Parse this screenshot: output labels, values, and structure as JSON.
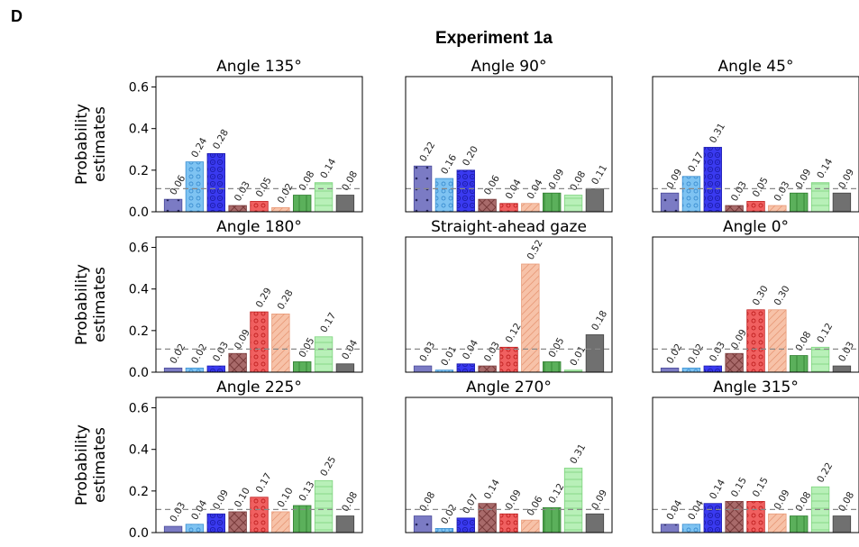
{
  "panel_letter": "D",
  "figure_title": "Experiment 1a",
  "chart_data": [
    {
      "type": "bar",
      "title": "Angle 135°",
      "ylabel_lines": [
        "Probability",
        "estimates"
      ],
      "ylim": [
        0,
        0.65
      ],
      "yticks": [
        "0.0",
        "0.2",
        "0.4",
        "0.6"
      ],
      "reference_line": 0.111,
      "values": [
        0.06,
        0.24,
        0.28,
        0.03,
        0.05,
        0.02,
        0.08,
        0.14,
        0.08
      ],
      "labels": [
        "0.06",
        "0.24",
        "0.28",
        "0.03",
        "0.05",
        "0.02",
        "0.08",
        "0.14",
        "0.08"
      ]
    },
    {
      "type": "bar",
      "title": "Angle 90°",
      "ylim": [
        0,
        0.65
      ],
      "reference_line": 0.111,
      "values": [
        0.22,
        0.16,
        0.2,
        0.06,
        0.04,
        0.04,
        0.09,
        0.08,
        0.11
      ],
      "labels": [
        "0.22",
        "0.16",
        "0.20",
        "0.06",
        "0.04",
        "0.04",
        "0.09",
        "0.08",
        "0.11"
      ]
    },
    {
      "type": "bar",
      "title": "Angle 45°",
      "ylim": [
        0,
        0.65
      ],
      "reference_line": 0.111,
      "values": [
        0.09,
        0.17,
        0.31,
        0.03,
        0.05,
        0.03,
        0.09,
        0.14,
        0.09
      ],
      "labels": [
        "0.09",
        "0.17",
        "0.31",
        "0.03",
        "0.05",
        "0.03",
        "0.09",
        "0.14",
        "0.09"
      ]
    },
    {
      "type": "bar",
      "title": "Angle 180°",
      "ylabel_lines": [
        "Probability",
        "estimates"
      ],
      "ylim": [
        0,
        0.65
      ],
      "yticks": [
        "0.0",
        "0.2",
        "0.4",
        "0.6"
      ],
      "reference_line": 0.111,
      "values": [
        0.02,
        0.02,
        0.03,
        0.09,
        0.29,
        0.28,
        0.05,
        0.17,
        0.04
      ],
      "labels": [
        "0.02",
        "0.02",
        "0.03",
        "0.09",
        "0.29",
        "0.28",
        "0.05",
        "0.17",
        "0.04"
      ]
    },
    {
      "type": "bar",
      "title": "Straight-ahead gaze",
      "ylim": [
        0,
        0.65
      ],
      "reference_line": 0.111,
      "values": [
        0.03,
        0.01,
        0.04,
        0.03,
        0.12,
        0.52,
        0.05,
        0.01,
        0.18
      ],
      "labels": [
        "0.03",
        "0.01",
        "0.04",
        "0.03",
        "0.12",
        "0.52",
        "0.05",
        "0.01",
        "0.18"
      ]
    },
    {
      "type": "bar",
      "title": "Angle 0°",
      "ylim": [
        0,
        0.65
      ],
      "reference_line": 0.111,
      "values": [
        0.02,
        0.02,
        0.03,
        0.09,
        0.3,
        0.3,
        0.08,
        0.12,
        0.03
      ],
      "labels": [
        "0.02",
        "0.02",
        "0.03",
        "0.09",
        "0.30",
        "0.30",
        "0.08",
        "0.12",
        "0.03"
      ]
    },
    {
      "type": "bar",
      "title": "Angle 225°",
      "ylabel_lines": [
        "Probability",
        "estimates"
      ],
      "ylim": [
        0,
        0.65
      ],
      "yticks": [
        "0.0",
        "0.2",
        "0.4",
        "0.6"
      ],
      "reference_line": 0.111,
      "values": [
        0.03,
        0.04,
        0.09,
        0.1,
        0.17,
        0.1,
        0.13,
        0.25,
        0.08
      ],
      "labels": [
        "0.03",
        "0.04",
        "0.09",
        "0.10",
        "0.17",
        "0.10",
        "0.13",
        "0.25",
        "0.08"
      ]
    },
    {
      "type": "bar",
      "title": "Angle 270°",
      "ylim": [
        0,
        0.65
      ],
      "reference_line": 0.111,
      "values": [
        0.08,
        0.02,
        0.07,
        0.14,
        0.09,
        0.06,
        0.12,
        0.31,
        0.09
      ],
      "labels": [
        "0.08",
        "0.02",
        "0.07",
        "0.14",
        "0.09",
        "0.06",
        "0.12",
        "0.31",
        "0.09"
      ]
    },
    {
      "type": "bar",
      "title": "Angle 315°",
      "ylim": [
        0,
        0.65
      ],
      "reference_line": 0.111,
      "values": [
        0.04,
        0.04,
        0.14,
        0.15,
        0.15,
        0.09,
        0.08,
        0.22,
        0.08
      ],
      "labels": [
        "0.04",
        "0.04",
        "0.14",
        "0.15",
        "0.15",
        "0.09",
        "0.08",
        "0.22",
        "0.08"
      ]
    }
  ],
  "bar_styles": [
    {
      "fill": "#7b7bc4",
      "stroke": "#4a4a99",
      "pattern": "dots"
    },
    {
      "fill": "#7ec3f2",
      "stroke": "#3d8fd1",
      "pattern": "circles"
    },
    {
      "fill": "#3a3af0",
      "stroke": "#1e1eb0",
      "pattern": "rings"
    },
    {
      "fill": "#a86a6a",
      "stroke": "#7a3c3c",
      "pattern": "cross"
    },
    {
      "fill": "#f06060",
      "stroke": "#c02020",
      "pattern": "circles"
    },
    {
      "fill": "#f7c2a8",
      "stroke": "#e89a78",
      "pattern": "diag"
    },
    {
      "fill": "#5bb05b",
      "stroke": "#2e7d2e",
      "pattern": "vlines"
    },
    {
      "fill": "#b8f0b8",
      "stroke": "#7dd37d",
      "pattern": "hlines"
    },
    {
      "fill": "#707070",
      "stroke": "#444444",
      "pattern": "none"
    }
  ]
}
